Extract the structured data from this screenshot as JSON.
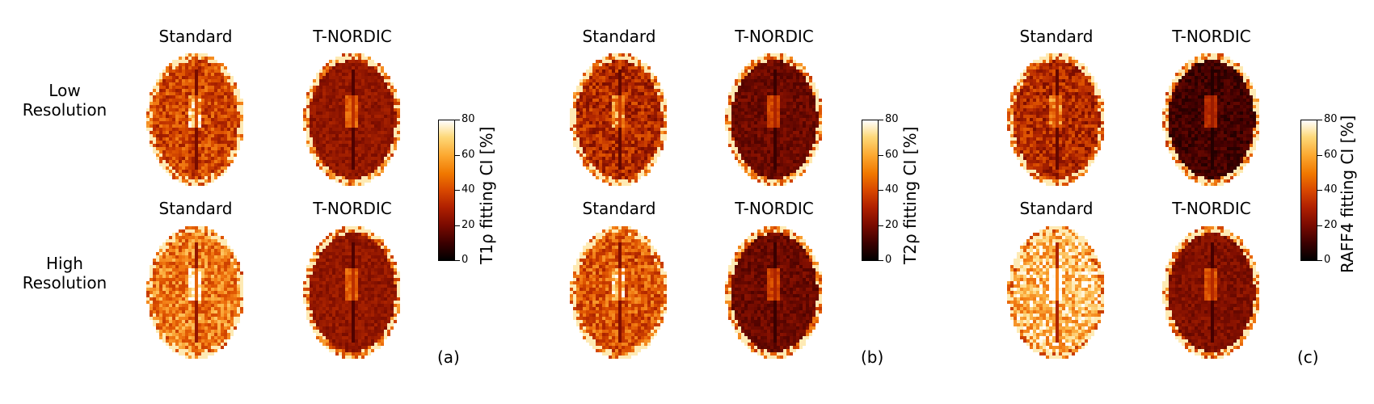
{
  "column_headers": [
    "Standard",
    "T-NORDIC"
  ],
  "row_labels": {
    "low": [
      "Low",
      "Resolution"
    ],
    "high": [
      "High",
      "Resolution"
    ]
  },
  "panels": [
    {
      "id": "a",
      "label": "(a)",
      "colorbar_label": "T1ρ fitting CI [%]"
    },
    {
      "id": "b",
      "label": "(b)",
      "colorbar_label": "T2ρ fitting CI [%]"
    },
    {
      "id": "c",
      "label": "(c)",
      "colorbar_label": "RAFF4 fitting CI [%]"
    }
  ],
  "colorbar_ticks": [
    "80",
    "60",
    "40",
    "20",
    "0"
  ],
  "colormap": {
    "low": "#000000",
    "mid": "#d84800",
    "high": "#ffffff"
  },
  "brain_intensity": {
    "a": {
      "low_standard": 0.55,
      "low_tnordic": 0.35,
      "high_standard": 0.7,
      "high_tnordic": 0.35
    },
    "b": {
      "low_standard": 0.45,
      "low_tnordic": 0.25,
      "high_standard": 0.6,
      "high_tnordic": 0.25
    },
    "c": {
      "low_standard": 0.45,
      "low_tnordic": 0.15,
      "high_standard": 0.85,
      "high_tnordic": 0.3
    }
  }
}
